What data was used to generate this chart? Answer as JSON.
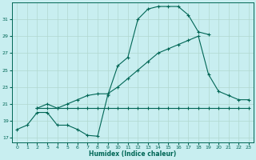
{
  "xlabel": "Humidex (Indice chaleur)",
  "bg_color": "#c8eef0",
  "grid_color": "#b0d8d0",
  "line_color": "#006655",
  "xlim": [
    -0.5,
    23.5
  ],
  "ylim": [
    16.5,
    33.0
  ],
  "yticks": [
    17,
    19,
    21,
    23,
    25,
    27,
    29,
    31
  ],
  "xticks": [
    0,
    1,
    2,
    3,
    4,
    5,
    6,
    7,
    8,
    9,
    10,
    11,
    12,
    13,
    14,
    15,
    16,
    17,
    18,
    19,
    20,
    21,
    22,
    23
  ],
  "line1_x": [
    0,
    1,
    2,
    3,
    4,
    5,
    6,
    7,
    8,
    9,
    10,
    11,
    12,
    13,
    14,
    15,
    16,
    17,
    18,
    19
  ],
  "line1_y": [
    18.0,
    18.5,
    20.0,
    20.0,
    18.5,
    18.5,
    18.0,
    17.3,
    17.2,
    22.0,
    25.5,
    26.5,
    31.0,
    32.2,
    32.5,
    32.5,
    32.5,
    31.5,
    29.5,
    29.2
  ],
  "line2_x": [
    2,
    3,
    4,
    5,
    6,
    7,
    8,
    9,
    10,
    11,
    12,
    13,
    14,
    15,
    16,
    17,
    18,
    19,
    20,
    21,
    22,
    23
  ],
  "line2_y": [
    20.5,
    21.0,
    20.5,
    21.0,
    21.5,
    22.0,
    22.2,
    22.2,
    23.0,
    24.0,
    25.0,
    26.0,
    27.0,
    27.5,
    28.0,
    28.5,
    29.0,
    24.5,
    22.5,
    22.0,
    21.5,
    21.5
  ],
  "line3_x": [
    2,
    3,
    4,
    5,
    6,
    7,
    8,
    9,
    10,
    11,
    12,
    13,
    14,
    15,
    16,
    17,
    18,
    19,
    20,
    21,
    22,
    23
  ],
  "line3_y": [
    20.5,
    20.5,
    20.5,
    20.5,
    20.5,
    20.5,
    20.5,
    20.5,
    20.5,
    20.5,
    20.5,
    20.5,
    20.5,
    20.5,
    20.5,
    20.5,
    20.5,
    20.5,
    20.5,
    20.5,
    20.5,
    20.5
  ]
}
